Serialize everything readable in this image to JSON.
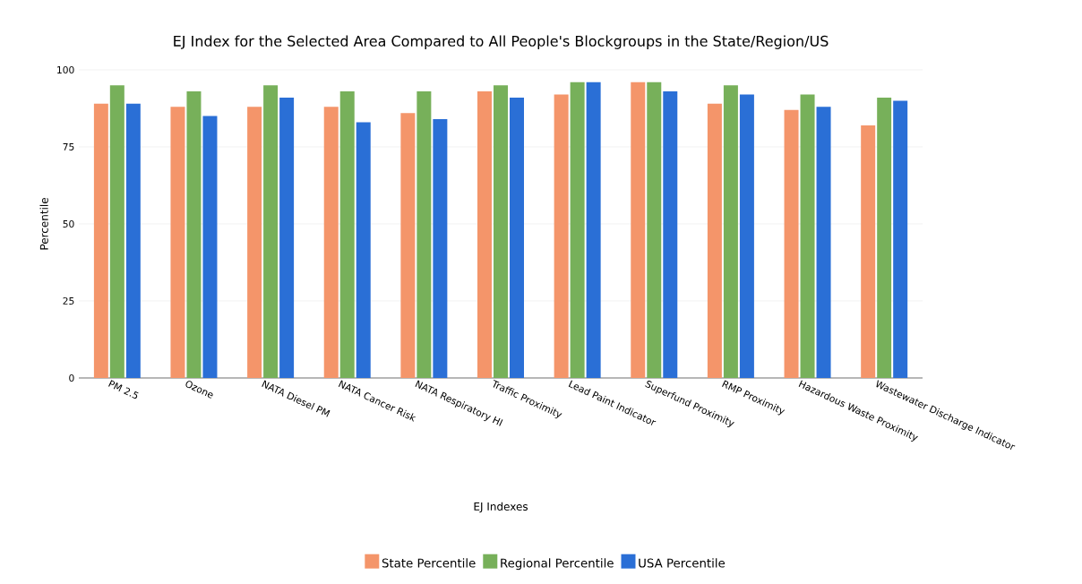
{
  "chart_data": {
    "type": "bar",
    "title": "EJ Index for the Selected Area Compared to All People's Blockgroups in the State/Region/US",
    "xlabel": "EJ Indexes",
    "ylabel": "Percentile",
    "categories": [
      "PM 2.5",
      "Ozone",
      "NATA Diesel PM",
      "NATA Cancer Risk",
      "NATA Respiratory HI",
      "Traffic Proximity",
      "Lead Paint Indicator",
      "Superfund Proximity",
      "RMP Proximity",
      "Hazardous Waste Proximity",
      "Wastewater Discharge Indicator"
    ],
    "series": [
      {
        "name": "State Percentile",
        "color": "#f4956a",
        "values": [
          89,
          88,
          88,
          88,
          86,
          93,
          92,
          96,
          89,
          87,
          82
        ]
      },
      {
        "name": "Regional Percentile",
        "color": "#77b05a",
        "values": [
          95,
          93,
          95,
          93,
          93,
          95,
          96,
          96,
          95,
          92,
          91
        ]
      },
      {
        "name": "USA Percentile",
        "color": "#2a6fd6",
        "values": [
          89,
          85,
          91,
          83,
          84,
          91,
          96,
          93,
          92,
          88,
          90
        ]
      }
    ],
    "ylim": [
      0,
      100
    ],
    "yticks": [
      0,
      25,
      50,
      75,
      100
    ],
    "grid": "y",
    "legend": "bottom"
  }
}
